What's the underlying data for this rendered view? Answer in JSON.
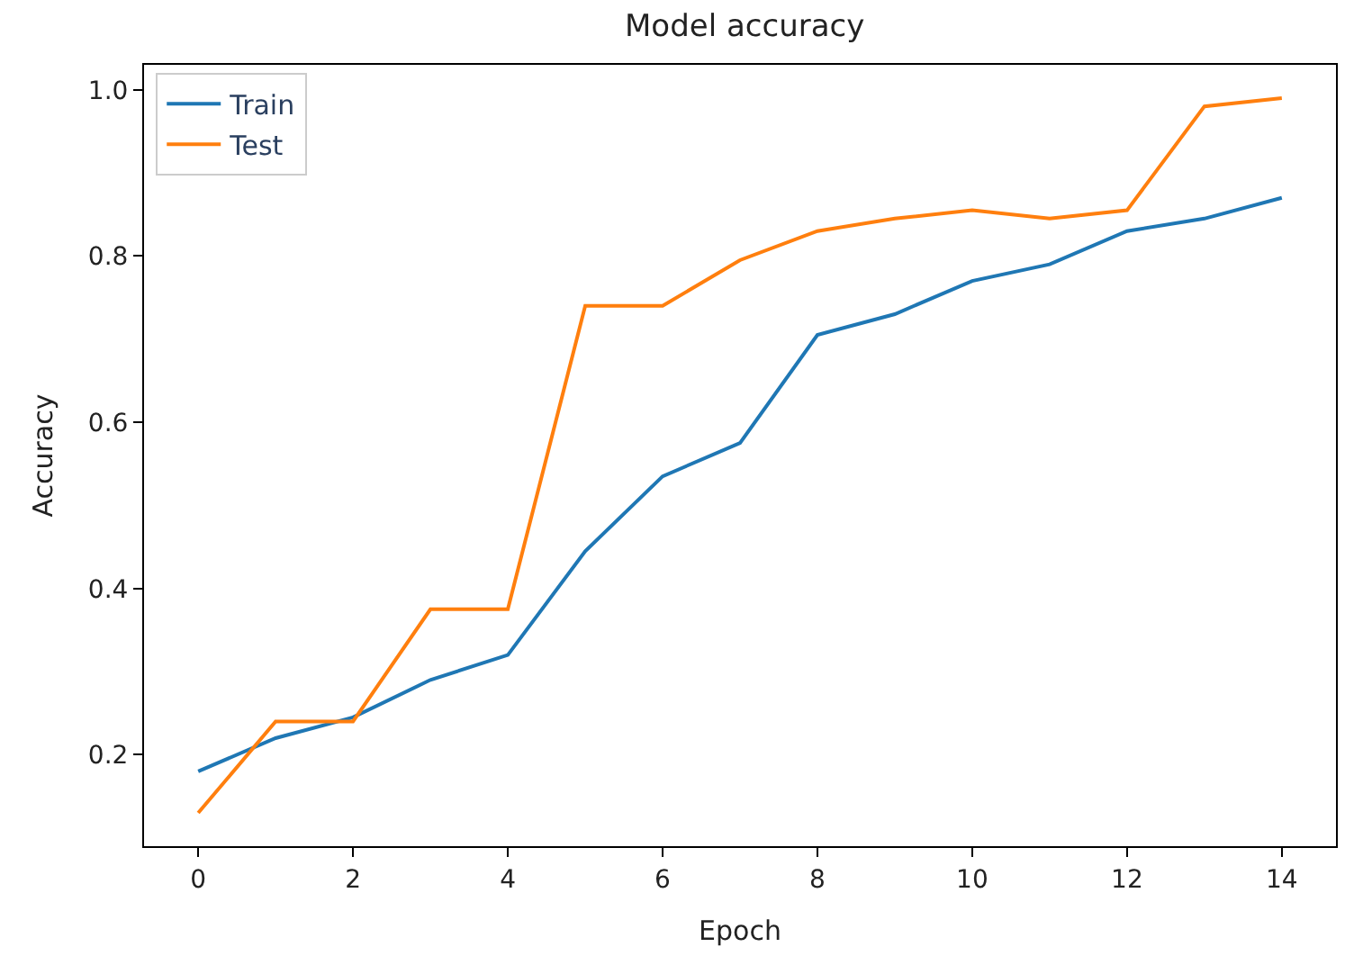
{
  "chart_data": {
    "type": "line",
    "title": "Model accuracy",
    "xlabel": "Epoch",
    "ylabel": "Accuracy",
    "x": [
      0,
      1,
      2,
      3,
      4,
      5,
      6,
      7,
      8,
      9,
      10,
      11,
      12,
      13,
      14
    ],
    "series": [
      {
        "name": "Train",
        "color": "#1f77b4",
        "values": [
          0.18,
          0.22,
          0.245,
          0.29,
          0.32,
          0.445,
          0.535,
          0.575,
          0.705,
          0.73,
          0.77,
          0.79,
          0.83,
          0.845,
          0.87
        ]
      },
      {
        "name": "Test",
        "color": "#ff7f0e",
        "values": [
          0.13,
          0.24,
          0.24,
          0.375,
          0.375,
          0.74,
          0.74,
          0.795,
          0.83,
          0.845,
          0.855,
          0.845,
          0.855,
          0.98,
          0.99
        ]
      }
    ],
    "xlim": [
      -0.7,
      14.7
    ],
    "xticks": [
      0,
      2,
      4,
      6,
      8,
      10,
      12,
      14
    ],
    "ylim": [
      0.09,
      1.03
    ],
    "yticks": [
      0.2,
      0.4,
      0.6,
      0.8,
      {
        "value": 1,
        "label": "1.0"
      }
    ],
    "legend": "top left",
    "marker": "none",
    "line_style": "solid"
  }
}
